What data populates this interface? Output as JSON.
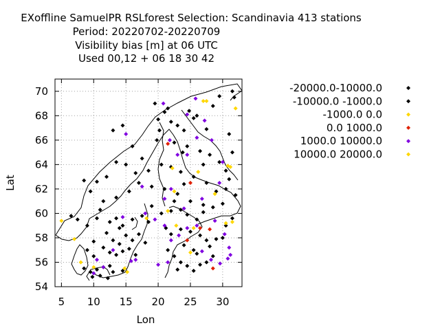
{
  "title": {
    "line1": "EXoffline SamuelPR RSLforest   Selection: Scandinavia    413 stations",
    "line2": "Period: 20220702-20220709",
    "line3": "Visibility bias [m] at  06 UTC",
    "line4": "Used  00,12  + 06 18 30 42"
  },
  "chart_data": {
    "type": "scatter",
    "title": "Visibility bias [m] at  06 UTC",
    "xlabel": "Lon",
    "ylabel": "Lat",
    "xlim": [
      4,
      33
    ],
    "ylim": [
      54,
      71
    ],
    "xticks": [
      5,
      10,
      15,
      20,
      25,
      30
    ],
    "yticks": [
      54,
      56,
      58,
      60,
      62,
      64,
      66,
      68,
      70
    ],
    "grid": true,
    "legend_position": "right",
    "background_map": "Scandinavia coastlines",
    "series": [
      {
        "name": "-20000.0-10000.0",
        "color": "#000000",
        "points": [
          [
            19.5,
            69.0
          ],
          [
            21.0,
            68.3
          ],
          [
            22.0,
            67.5
          ],
          [
            24.0,
            66.8
          ],
          [
            26.0,
            68.0
          ],
          [
            27.5,
            66.9
          ],
          [
            20.0,
            67.7
          ],
          [
            21.5,
            68.6
          ],
          [
            23.0,
            67.2
          ],
          [
            25.5,
            67.8
          ],
          [
            28.5,
            68.8
          ],
          [
            29.5,
            69.6
          ],
          [
            31.5,
            70.0
          ],
          [
            19.8,
            66.0
          ],
          [
            22.5,
            65.8
          ],
          [
            24.5,
            65.5
          ],
          [
            26.5,
            65.1
          ],
          [
            28.0,
            64.8
          ],
          [
            29.5,
            64.2
          ],
          [
            30.5,
            63.5
          ],
          [
            31.0,
            62.8
          ],
          [
            17.5,
            64.5
          ],
          [
            18.5,
            63.5
          ],
          [
            20.5,
            64.0
          ],
          [
            22.0,
            63.8
          ],
          [
            23.5,
            63.4
          ],
          [
            25.5,
            63.0
          ],
          [
            27.5,
            62.5
          ],
          [
            29.0,
            61.8
          ],
          [
            13.0,
            66.8
          ],
          [
            14.5,
            67.2
          ],
          [
            16.0,
            65.5
          ],
          [
            15.0,
            64.0
          ],
          [
            13.5,
            64.2
          ],
          [
            16.5,
            63.3
          ],
          [
            12.0,
            63.0
          ],
          [
            10.5,
            62.6
          ],
          [
            8.5,
            62.7
          ],
          [
            9.5,
            61.8
          ],
          [
            11.5,
            61.0
          ],
          [
            13.5,
            61.3
          ],
          [
            15.5,
            61.8
          ],
          [
            17.0,
            62.5
          ],
          [
            19.0,
            62.2
          ],
          [
            21.0,
            62.0
          ],
          [
            23.0,
            61.6
          ],
          [
            25.0,
            61.0
          ],
          [
            27.0,
            60.7
          ],
          [
            28.5,
            60.5
          ],
          [
            6.5,
            59.8
          ],
          [
            7.5,
            59.5
          ],
          [
            9.0,
            59.0
          ],
          [
            10.5,
            59.6
          ],
          [
            11.0,
            60.3
          ],
          [
            12.5,
            59.3
          ],
          [
            13.5,
            59.6
          ],
          [
            14.5,
            59.0
          ],
          [
            16.0,
            59.5
          ],
          [
            17.5,
            59.8
          ],
          [
            18.5,
            59.3
          ],
          [
            20.5,
            60.0
          ],
          [
            22.0,
            60.2
          ],
          [
            23.5,
            60.3
          ],
          [
            24.5,
            59.9
          ],
          [
            26.0,
            59.5
          ],
          [
            27.0,
            60.1
          ],
          [
            12.0,
            58.4
          ],
          [
            13.0,
            57.8
          ],
          [
            14.0,
            57.5
          ],
          [
            15.0,
            58.2
          ],
          [
            16.0,
            57.8
          ],
          [
            17.0,
            58.3
          ],
          [
            18.0,
            57.6
          ],
          [
            11.5,
            57.2
          ],
          [
            12.5,
            56.8
          ],
          [
            13.5,
            56.6
          ],
          [
            14.5,
            56.9
          ],
          [
            15.5,
            57.1
          ],
          [
            16.5,
            56.6
          ],
          [
            9.0,
            57.0
          ],
          [
            10.0,
            56.5
          ],
          [
            8.5,
            55.5
          ],
          [
            9.5,
            55.2
          ],
          [
            10.5,
            55.4
          ],
          [
            11.5,
            55.6
          ],
          [
            12.5,
            55.7
          ],
          [
            13.0,
            55.2
          ],
          [
            11.0,
            54.9
          ],
          [
            9.8,
            54.8
          ],
          [
            14.5,
            55.3
          ],
          [
            21.5,
            57.0
          ],
          [
            22.5,
            56.5
          ],
          [
            23.5,
            56.0
          ],
          [
            24.5,
            55.7
          ],
          [
            25.5,
            55.3
          ],
          [
            26.5,
            55.8
          ],
          [
            27.5,
            56.0
          ],
          [
            28.5,
            56.5
          ],
          [
            22.0,
            58.3
          ],
          [
            23.5,
            58.7
          ],
          [
            25.0,
            58.5
          ],
          [
            26.5,
            58.2
          ],
          [
            27.5,
            57.8
          ],
          [
            28.0,
            57.3
          ],
          [
            24.0,
            57.4
          ],
          [
            25.5,
            57.0
          ],
          [
            30.0,
            58.0
          ],
          [
            30.5,
            59.0
          ],
          [
            31.5,
            59.6
          ],
          [
            30.0,
            60.8
          ],
          [
            32.0,
            61.5
          ],
          [
            31.0,
            66.5
          ],
          [
            31.5,
            65.0
          ],
          [
            31.8,
            69.5
          ]
        ]
      },
      {
        "name": "-10000.0 -1000.0",
        "color": "#000000",
        "points": [
          [
            20.2,
            66.8
          ],
          [
            23.8,
            65.0
          ],
          [
            27.0,
            64.0
          ],
          [
            24.0,
            62.4
          ],
          [
            22.5,
            61.0
          ],
          [
            19.0,
            60.6
          ],
          [
            21.2,
            58.8
          ],
          [
            14.0,
            58.8
          ],
          [
            10.0,
            57.7
          ],
          [
            12.2,
            54.7
          ],
          [
            23.0,
            55.4
          ],
          [
            26.0,
            56.7
          ],
          [
            29.0,
            57.9
          ],
          [
            30.5,
            62.0
          ],
          [
            24.8,
            68.4
          ]
        ]
      },
      {
        "name": "-1000.0 0.0",
        "color": "#ffd700",
        "points": [
          [
            5.0,
            59.4
          ],
          [
            7.0,
            57.9
          ],
          [
            8.0,
            56.0
          ],
          [
            10.0,
            55.6
          ],
          [
            14.8,
            55.5
          ],
          [
            27.0,
            69.2
          ],
          [
            32.0,
            68.6
          ],
          [
            31.2,
            63.8
          ],
          [
            28.8,
            61.6
          ],
          [
            21.5,
            60.2
          ],
          [
            22.5,
            61.8
          ],
          [
            25.5,
            58.8
          ],
          [
            30.5,
            59.2
          ],
          [
            31.5,
            59.3
          ],
          [
            25.0,
            56.8
          ],
          [
            22.8,
            59.0
          ],
          [
            26.2,
            63.4
          ]
        ]
      },
      {
        "name": "0.0 1000.0",
        "color": "#e02000",
        "points": [
          [
            25.0,
            62.5
          ],
          [
            21.5,
            65.7
          ],
          [
            26.5,
            58.8
          ],
          [
            28.0,
            58.7
          ],
          [
            28.5,
            55.5
          ],
          [
            24.5,
            57.8
          ]
        ]
      },
      {
        "name": "1000.0 10000.0",
        "color": "#8000e0",
        "points": [
          [
            15.0,
            66.5
          ],
          [
            20.8,
            69.0
          ],
          [
            24.5,
            68.1
          ],
          [
            25.8,
            69.4
          ],
          [
            27.2,
            67.6
          ],
          [
            21.8,
            66.0
          ],
          [
            23.0,
            64.8
          ],
          [
            26.0,
            66.2
          ],
          [
            28.3,
            66.0
          ],
          [
            17.5,
            62.2
          ],
          [
            21.0,
            61.2
          ],
          [
            22.0,
            62.0
          ],
          [
            24.0,
            60.4
          ],
          [
            26.8,
            61.2
          ],
          [
            29.5,
            62.5
          ],
          [
            30.0,
            64.2
          ],
          [
            18.0,
            60.0
          ],
          [
            19.5,
            59.5
          ],
          [
            21.0,
            59.0
          ],
          [
            23.2,
            58.2
          ],
          [
            24.5,
            58.8
          ],
          [
            26.0,
            59.0
          ],
          [
            28.8,
            59.4
          ],
          [
            30.3,
            58.3
          ],
          [
            31.0,
            57.2
          ],
          [
            31.2,
            56.6
          ],
          [
            30.8,
            56.3
          ],
          [
            29.6,
            55.9
          ],
          [
            28.2,
            56.2
          ],
          [
            26.8,
            56.9
          ],
          [
            22.0,
            57.8
          ],
          [
            21.5,
            56.0
          ],
          [
            20.0,
            55.8
          ],
          [
            15.8,
            56.1
          ],
          [
            16.5,
            56.2
          ],
          [
            14.5,
            59.7
          ],
          [
            13.0,
            57.0
          ],
          [
            11.5,
            55.6
          ],
          [
            10.0,
            55.1
          ],
          [
            10.5,
            56.2
          ],
          [
            24.5,
            64.8
          ]
        ]
      },
      {
        "name": "10000.0 20000.0",
        "color": "#ffd700",
        "points": [
          [
            27.5,
            69.2
          ],
          [
            30.8,
            63.9
          ],
          [
            28.8,
            61.6
          ],
          [
            18.2,
            59.6
          ],
          [
            15.2,
            55.2
          ],
          [
            22.2,
            63.7
          ]
        ]
      }
    ]
  },
  "legend_entries": [
    {
      "label": "-20000.0-10000.0",
      "color": "#000000"
    },
    {
      "label": "-10000.0 -1000.0",
      "color": "#000000"
    },
    {
      "label": "-1000.0 0.0",
      "color": "#ffd700"
    },
    {
      "label": "0.0 1000.0",
      "color": "#e02000"
    },
    {
      "label": "1000.0 10000.0",
      "color": "#8000e0"
    },
    {
      "label": "10000.0 20000.0",
      "color": "#ffd700"
    }
  ]
}
